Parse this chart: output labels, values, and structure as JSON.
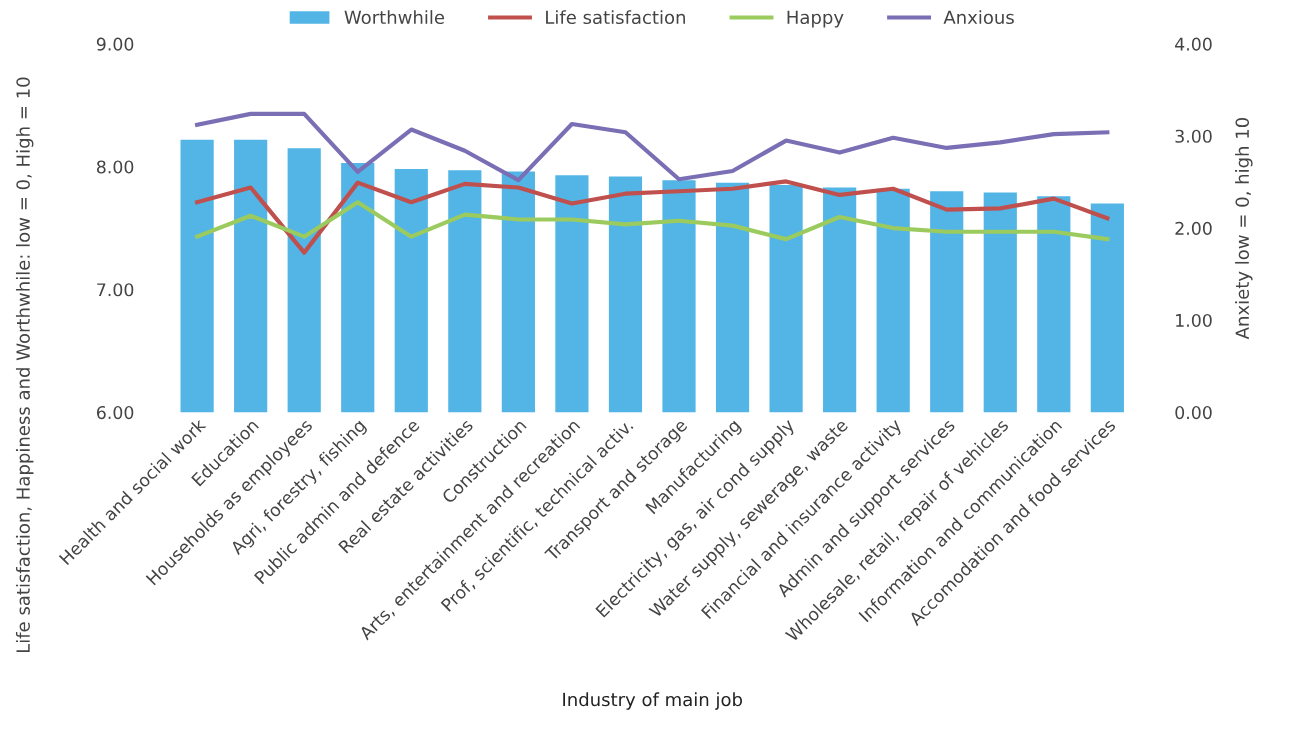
{
  "chart_data": {
    "type": "bar",
    "categories": [
      "Health and social work",
      "Education",
      "Households as employees",
      "Agri, forestry, fishing",
      "Public admin and defence",
      "Real estate activities",
      "Construction",
      "Arts, entertainment and recreation",
      "Prof, scientific, technical activ.",
      "Transport and storage",
      "Manufacturing",
      "Electricity, gas, air cond supply",
      "Water supply, sewerage, waste",
      "Financial and insurance activity",
      "Admin and support services",
      "Wholesale, retail, repair of vehicles",
      "Information and communication",
      "Accomodation and food services"
    ],
    "series": [
      {
        "name": "Worthwhile",
        "color": "#52b5e6",
        "values": [
          8.22,
          8.22,
          8.15,
          8.03,
          7.98,
          7.97,
          7.96,
          7.93,
          7.92,
          7.89,
          7.87,
          7.85,
          7.83,
          7.82,
          7.8,
          7.79,
          7.76,
          7.7
        ]
      },
      {
        "name": "Life satisfaction",
        "type": "line",
        "color": "#c0504d",
        "values": [
          7.71,
          7.83,
          7.3,
          7.87,
          7.71,
          7.86,
          7.83,
          7.7,
          7.78,
          7.8,
          7.82,
          7.88,
          7.77,
          7.82,
          7.65,
          7.66,
          7.74,
          7.58
        ]
      },
      {
        "name": "Happy",
        "type": "line",
        "color": "#9bcb5e",
        "values": [
          7.43,
          7.6,
          7.43,
          7.71,
          7.43,
          7.61,
          7.57,
          7.57,
          7.53,
          7.56,
          7.52,
          7.41,
          7.59,
          7.5,
          7.47,
          7.47,
          7.47,
          7.41
        ]
      },
      {
        "name": "Anxious",
        "type": "line",
        "color": "#7a6fb5",
        "axis": "y2",
        "values": [
          3.12,
          3.24,
          3.24,
          2.61,
          3.07,
          2.84,
          2.52,
          3.13,
          3.04,
          2.53,
          2.62,
          2.95,
          2.82,
          2.98,
          2.87,
          2.93,
          3.02,
          3.04
        ]
      }
    ],
    "xlabel": "Industry of main job",
    "ylabel": "Life satisfaction, Happiness and Worthwhile: low = 0, High = 10",
    "y2label": "Anxiety low = 0, high 10",
    "ylim": [
      6,
      9
    ],
    "yticks": [
      {
        "value": 6,
        "label": "6.00"
      },
      {
        "value": 7,
        "label": "7.00"
      },
      {
        "value": 8,
        "label": "8.00"
      },
      {
        "value": 9,
        "label": "9.00"
      }
    ],
    "y2lim": [
      0,
      4
    ],
    "y2ticks": [
      {
        "value": 0,
        "label": "0.00"
      },
      {
        "value": 1,
        "label": "1.00"
      },
      {
        "value": 2,
        "label": "2.00"
      },
      {
        "value": 3,
        "label": "3.00"
      },
      {
        "value": 4,
        "label": "4.00"
      }
    ],
    "legend": "top",
    "grid": false
  }
}
